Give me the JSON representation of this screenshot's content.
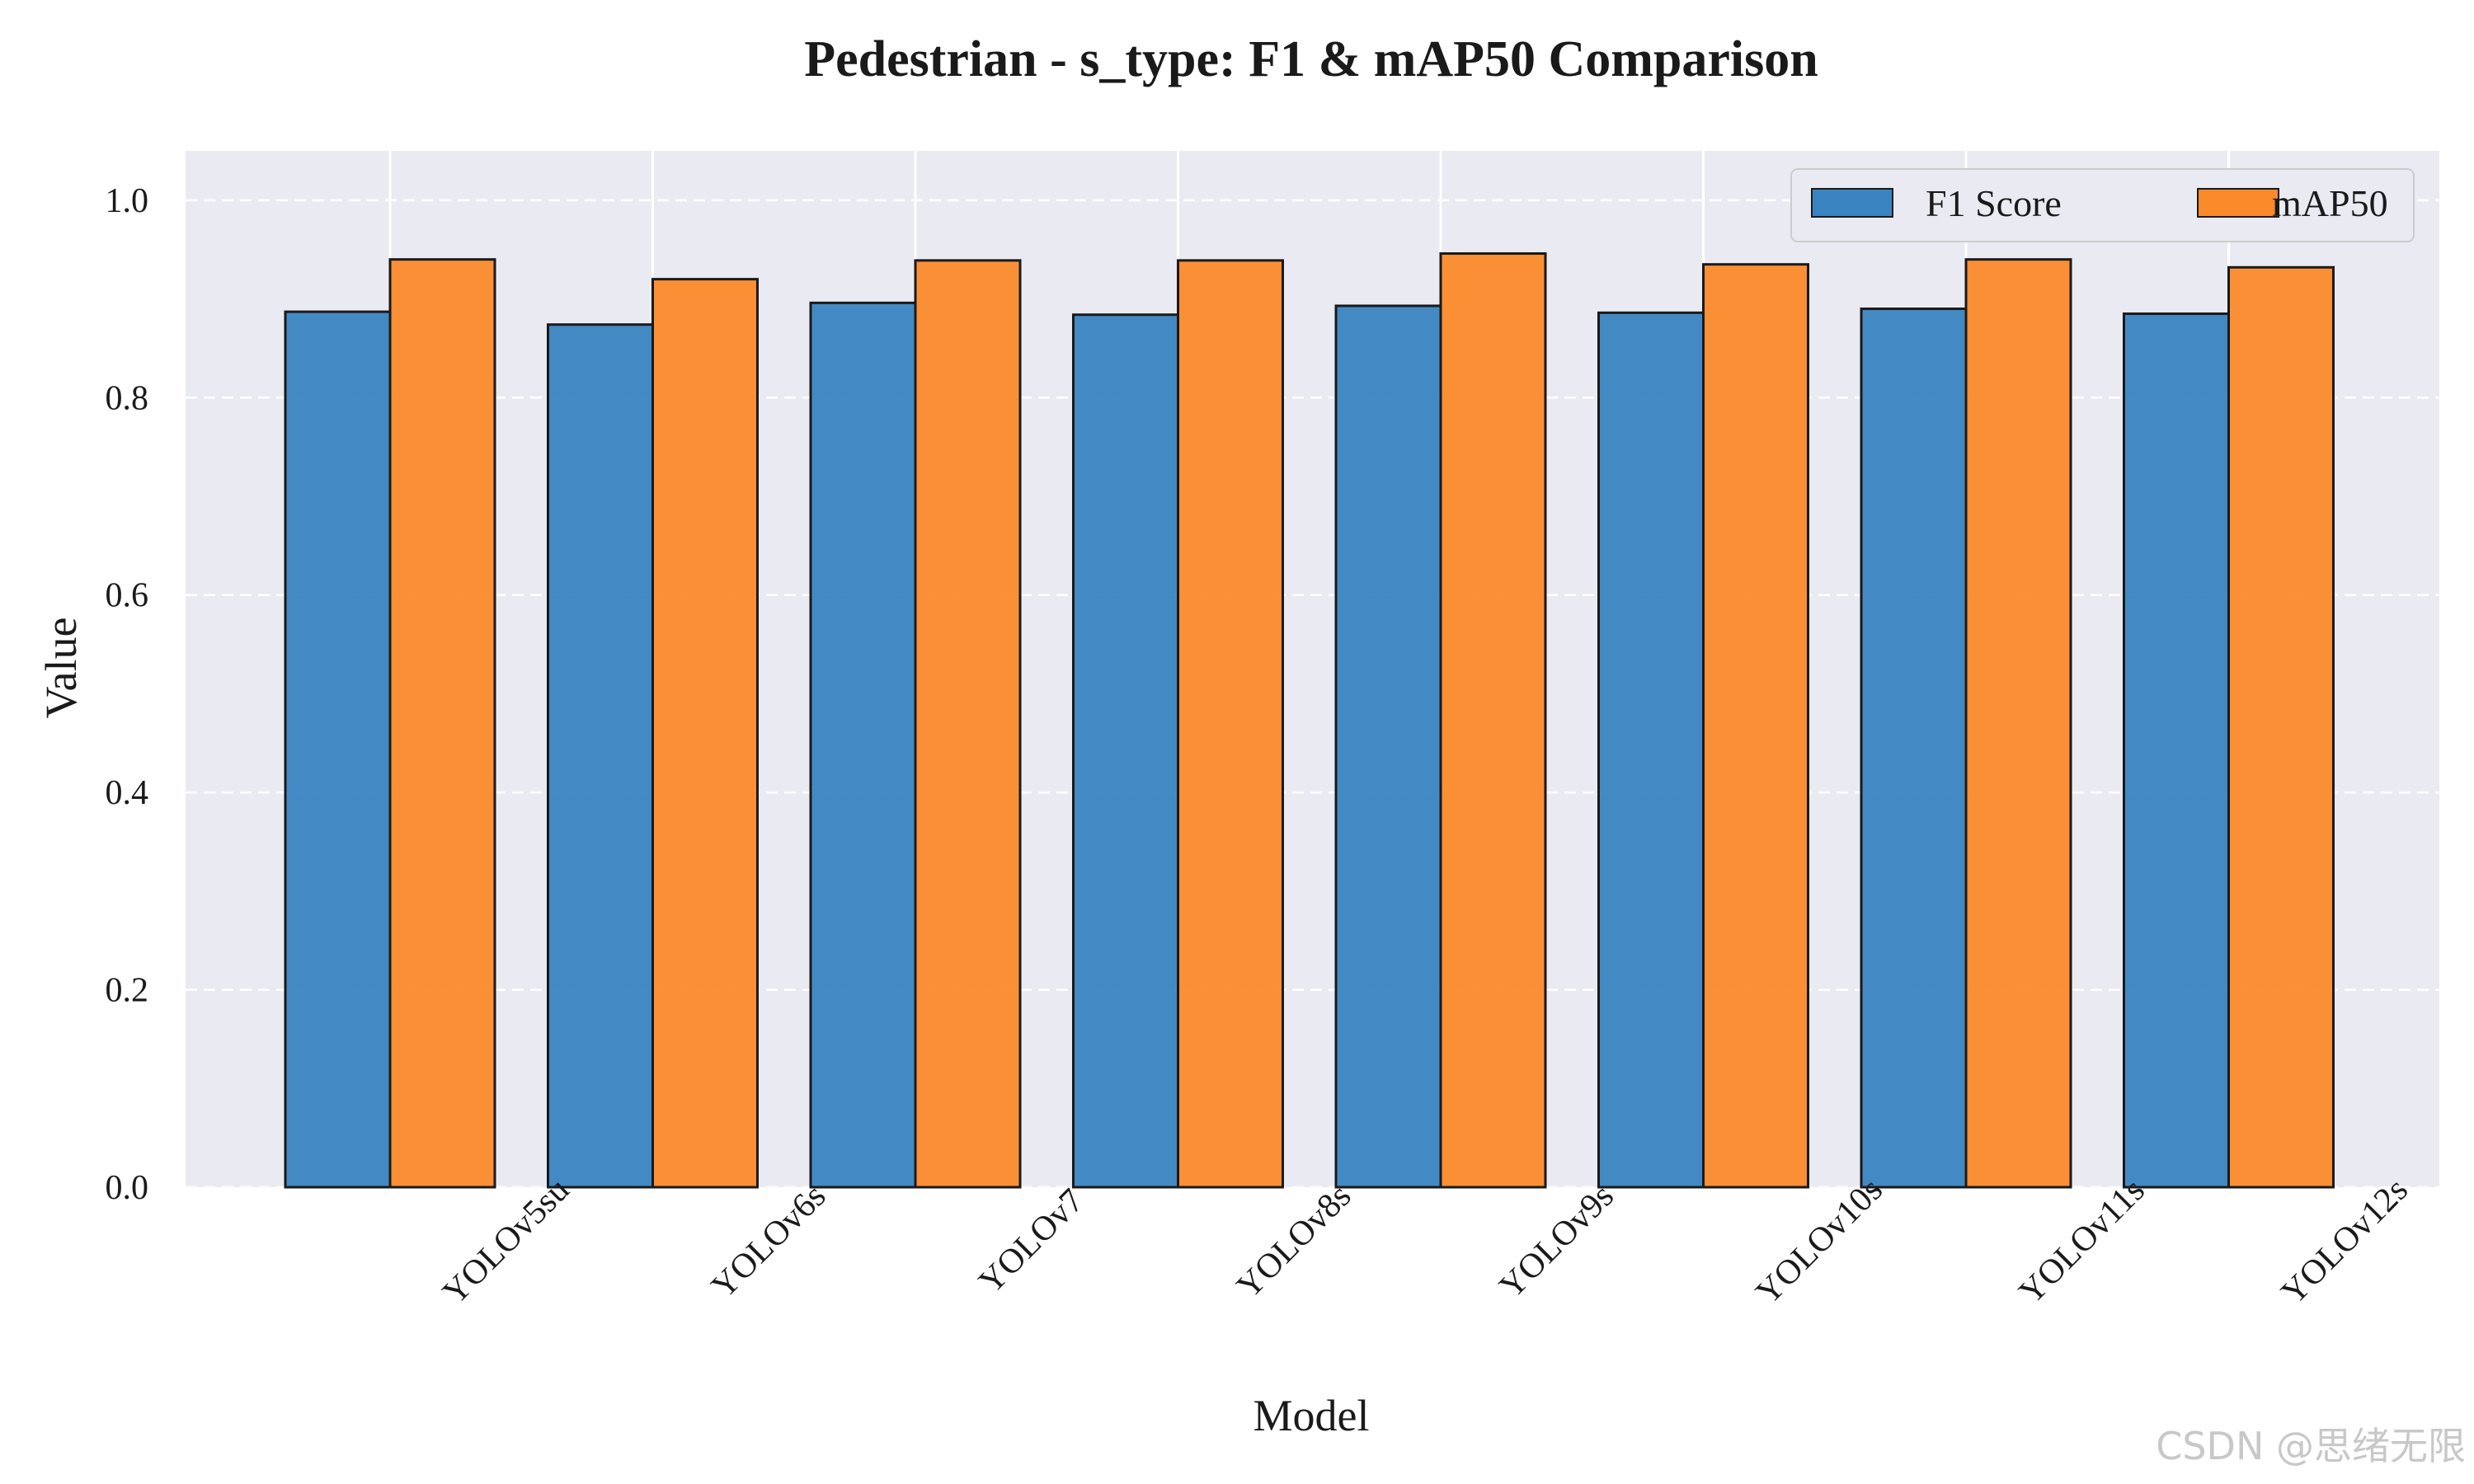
{
  "chart_data": {
    "type": "bar",
    "title": "Pedestrian - s_type: F1 & mAP50 Comparison",
    "xlabel": "Model",
    "ylabel": "Value",
    "categories": [
      "YOLOv5su",
      "YOLOv6s",
      "YOLOv7",
      "YOLOv8s",
      "YOLOv9s",
      "YOLOv10s",
      "YOLOv11s",
      "YOLOv12s"
    ],
    "series": [
      {
        "name": "F1 Score",
        "color": "#3a85c1",
        "values": [
          0.887,
          0.874,
          0.896,
          0.884,
          0.893,
          0.886,
          0.89,
          0.885
        ]
      },
      {
        "name": "mAP50",
        "color": "#fb8a2a",
        "values": [
          0.94,
          0.92,
          0.939,
          0.939,
          0.946,
          0.935,
          0.94,
          0.932
        ]
      }
    ],
    "ylim": [
      0,
      1.05
    ],
    "yticks": [
      "0.0",
      "0.2",
      "0.4",
      "0.6",
      "0.8",
      "1.0"
    ],
    "grid": true,
    "legend_position": "top-right",
    "background_color": "#eaeaf2"
  },
  "watermark": "CSDN @思绪无限"
}
